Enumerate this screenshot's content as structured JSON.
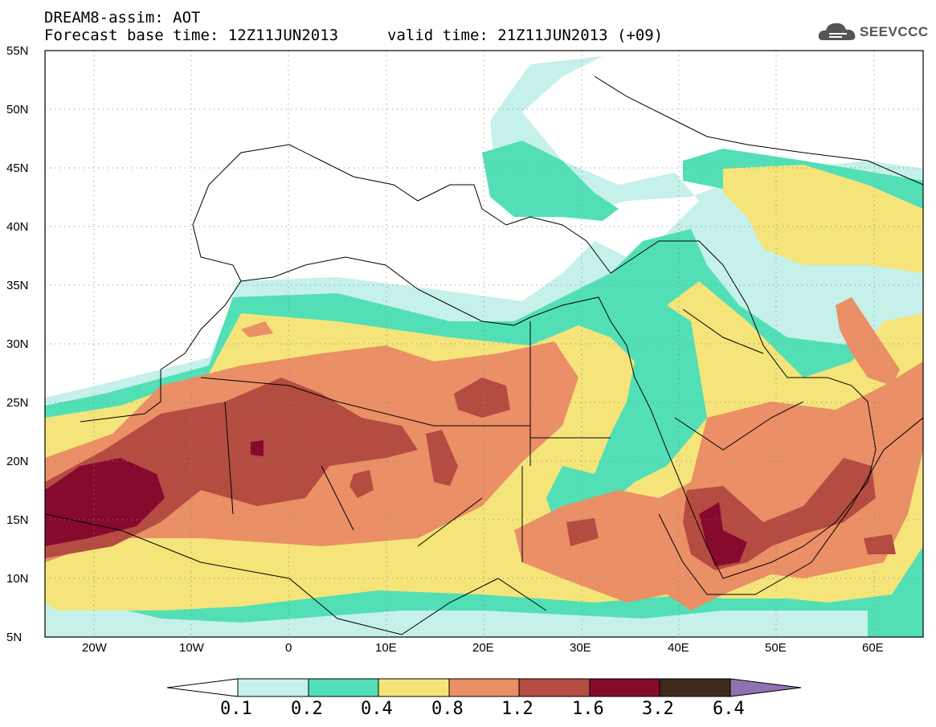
{
  "title_line1": "DREAM8-assim: AOT",
  "title_line2": "Forecast base time: 12Z11JUN2013",
  "title_line3": "valid time: 21Z11JUN2013 (+09)",
  "logo_text": "SEEVCCC",
  "logo_icon": "cloud-icon",
  "map": {
    "lon_range": [
      -25,
      65
    ],
    "lat_range": [
      5,
      55
    ],
    "y_ticks": [
      "55N",
      "50N",
      "45N",
      "40N",
      "35N",
      "30N",
      "25N",
      "20N",
      "15N",
      "10N",
      "5N"
    ],
    "x_ticks": [
      "20W",
      "10W",
      "0",
      "10E",
      "20E",
      "30E",
      "40E",
      "50E",
      "60E"
    ]
  },
  "colorbar": {
    "labels": [
      "0.1",
      "0.2",
      "0.4",
      "0.8",
      "1.2",
      "1.6",
      "3.2",
      "6.4"
    ],
    "colors": [
      "#ffffff",
      "#c6f0ea",
      "#52dfb6",
      "#f5e47a",
      "#ea8f66",
      "#b44c42",
      "#860a2e",
      "#3f2a1c",
      "#8f73b0"
    ]
  }
}
